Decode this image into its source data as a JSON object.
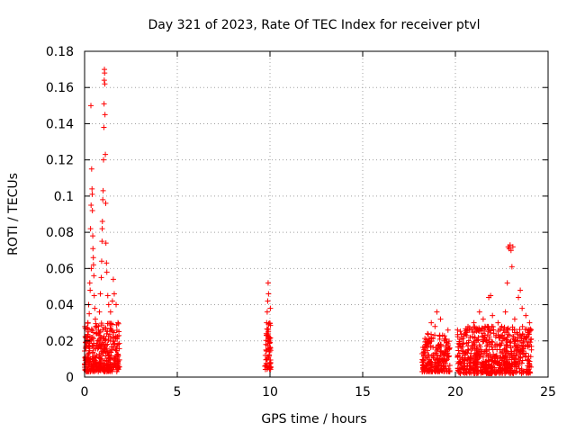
{
  "chart_data": {
    "type": "scatter",
    "title": "Day 321 of 2023, Rate Of TEC Index for receiver ptvl",
    "xlabel": "GPS time / hours",
    "ylabel": "ROTI / TECUs",
    "xlim": [
      0,
      25
    ],
    "ylim": [
      0,
      0.18
    ],
    "xticks": [
      0,
      5,
      10,
      15,
      20,
      25
    ],
    "yticks": [
      0,
      0.02,
      0.04,
      0.06,
      0.08,
      0.1,
      0.12,
      0.14,
      0.16,
      0.18
    ],
    "ytick_labels": [
      "0",
      "0.02",
      "0.04",
      "0.06",
      "0.08",
      "0.1",
      "0.12",
      "0.14",
      "0.16",
      "0.18"
    ],
    "grid": true,
    "marker": "+",
    "marker_color": "#ff0000",
    "series": [
      {
        "name": "ROTI",
        "points": [
          [
            0.05,
            0.01
          ],
          [
            0.08,
            0.016
          ],
          [
            0.12,
            0.022
          ],
          [
            0.15,
            0.012
          ],
          [
            0.18,
            0.03
          ],
          [
            0.2,
            0.025
          ],
          [
            0.22,
            0.04
          ],
          [
            0.25,
            0.035
          ],
          [
            0.28,
            0.052
          ],
          [
            0.3,
            0.048
          ],
          [
            0.32,
            0.082
          ],
          [
            0.34,
            0.15
          ],
          [
            0.35,
            0.095
          ],
          [
            0.36,
            0.06
          ],
          [
            0.38,
            0.115
          ],
          [
            0.4,
            0.104
          ],
          [
            0.41,
            0.101
          ],
          [
            0.42,
            0.092
          ],
          [
            0.44,
            0.078
          ],
          [
            0.45,
            0.071
          ],
          [
            0.47,
            0.066
          ],
          [
            0.48,
            0.062
          ],
          [
            0.5,
            0.056
          ],
          [
            0.52,
            0.045
          ],
          [
            0.55,
            0.038
          ],
          [
            0.58,
            0.032
          ],
          [
            0.6,
            0.028
          ],
          [
            0.65,
            0.024
          ],
          [
            0.7,
            0.02
          ],
          [
            0.75,
            0.026
          ],
          [
            0.8,
            0.036
          ],
          [
            0.85,
            0.046
          ],
          [
            0.9,
            0.055
          ],
          [
            0.92,
            0.064
          ],
          [
            0.94,
            0.075
          ],
          [
            0.95,
            0.082
          ],
          [
            0.96,
            0.086
          ],
          [
            0.98,
            0.098
          ],
          [
            1.0,
            0.103
          ],
          [
            1.02,
            0.12
          ],
          [
            1.04,
            0.138
          ],
          [
            1.05,
            0.151
          ],
          [
            1.06,
            0.164
          ],
          [
            1.07,
            0.17
          ],
          [
            1.08,
            0.168
          ],
          [
            1.09,
            0.162
          ],
          [
            1.1,
            0.145
          ],
          [
            1.12,
            0.123
          ],
          [
            1.14,
            0.096
          ],
          [
            1.15,
            0.074
          ],
          [
            1.18,
            0.063
          ],
          [
            1.2,
            0.058
          ],
          [
            1.25,
            0.045
          ],
          [
            1.3,
            0.04
          ],
          [
            1.4,
            0.036
          ],
          [
            1.5,
            0.042
          ],
          [
            1.55,
            0.054
          ],
          [
            1.6,
            0.046
          ],
          [
            1.7,
            0.04
          ],
          [
            1.8,
            0.03
          ],
          [
            9.72,
            0.006
          ],
          [
            9.75,
            0.012
          ],
          [
            9.78,
            0.018
          ],
          [
            9.8,
            0.024
          ],
          [
            9.82,
            0.03
          ],
          [
            9.85,
            0.036
          ],
          [
            9.88,
            0.042
          ],
          [
            9.9,
            0.052
          ],
          [
            9.92,
            0.046
          ],
          [
            9.95,
            0.022
          ],
          [
            9.98,
            0.014
          ],
          [
            10.0,
            0.008
          ],
          [
            10.02,
            0.038
          ],
          [
            18.3,
            0.012
          ],
          [
            18.5,
            0.024
          ],
          [
            18.7,
            0.03
          ],
          [
            18.9,
            0.028
          ],
          [
            19.0,
            0.036
          ],
          [
            19.2,
            0.032
          ],
          [
            19.4,
            0.02
          ],
          [
            19.5,
            0.014
          ],
          [
            19.6,
            0.026
          ],
          [
            20.3,
            0.016
          ],
          [
            20.5,
            0.024
          ],
          [
            20.8,
            0.022
          ],
          [
            21.0,
            0.03
          ],
          [
            21.2,
            0.026
          ],
          [
            21.3,
            0.036
          ],
          [
            21.5,
            0.032
          ],
          [
            21.6,
            0.028
          ],
          [
            21.8,
            0.044
          ],
          [
            21.9,
            0.045
          ],
          [
            22.0,
            0.034
          ],
          [
            22.3,
            0.03
          ],
          [
            22.5,
            0.028
          ],
          [
            22.7,
            0.036
          ],
          [
            22.8,
            0.052
          ],
          [
            22.85,
            0.072
          ],
          [
            22.9,
            0.071
          ],
          [
            22.95,
            0.073
          ],
          [
            23.0,
            0.07
          ],
          [
            23.05,
            0.061
          ],
          [
            23.1,
            0.072
          ],
          [
            23.2,
            0.032
          ],
          [
            23.4,
            0.044
          ],
          [
            23.5,
            0.048
          ],
          [
            23.6,
            0.038
          ],
          [
            23.8,
            0.034
          ],
          [
            24.0,
            0.03
          ]
        ],
        "dense_bands": [
          {
            "x_range": [
              0.0,
              1.9
            ],
            "y_range": [
              0.003,
              0.03
            ],
            "count": 360
          },
          {
            "x_range": [
              9.75,
              10.05
            ],
            "y_range": [
              0.004,
              0.03
            ],
            "count": 60
          },
          {
            "x_range": [
              18.2,
              19.7
            ],
            "y_range": [
              0.003,
              0.024
            ],
            "count": 220
          },
          {
            "x_range": [
              20.1,
              24.1
            ],
            "y_range": [
              0.002,
              0.028
            ],
            "count": 650
          }
        ]
      }
    ]
  }
}
